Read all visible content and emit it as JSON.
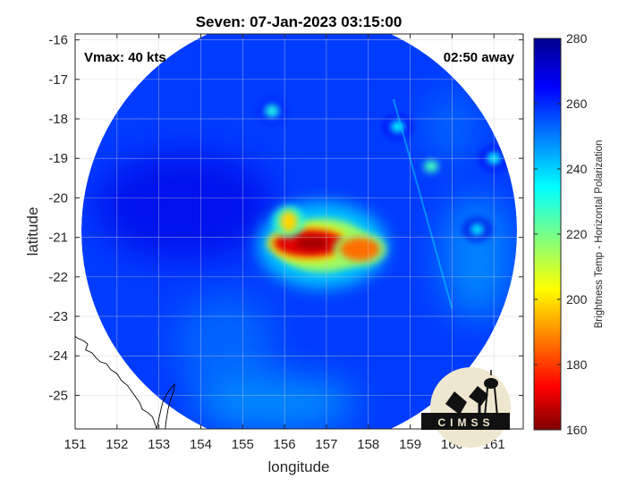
{
  "chart_data": {
    "type": "heatmap",
    "title": "Seven: 07-Jan-2023 03:15:00",
    "xlabel": "longitude",
    "ylabel": "latitude",
    "xlim": [
      151,
      161.7
    ],
    "ylim": [
      -25.85,
      -15.85
    ],
    "x_ticks": [
      151,
      152,
      153,
      154,
      155,
      156,
      157,
      158,
      159,
      160,
      161
    ],
    "y_ticks": [
      -16,
      -17,
      -18,
      -19,
      -20,
      -21,
      -22,
      -23,
      -24,
      -25
    ],
    "grid": true,
    "annotations": {
      "vmax": "Vmax: 40 kts",
      "time_away": "02:50 away"
    },
    "colorbar": {
      "label": "Brightness Temp - Horizontal Polarization",
      "range": [
        160,
        280
      ],
      "ticks": [
        160,
        180,
        200,
        220,
        240,
        260,
        280
      ],
      "colormap": "jet"
    },
    "swath": {
      "center": [
        156.35,
        -20.85
      ],
      "radius_deg": 5.2
    },
    "storm_center": [
      156.6,
      -21.15
    ],
    "background_bt": 258,
    "features": [
      {
        "name": "convective core",
        "lon": 156.6,
        "lat": -21.15,
        "bt": 172
      },
      {
        "name": "eastern rainband",
        "lon": 157.8,
        "lat": -21.3,
        "bt": 188
      },
      {
        "name": "northern bump",
        "lon": 156.1,
        "lat": -20.6,
        "bt": 200
      },
      {
        "name": "northeast cell",
        "lon": 159.5,
        "lat": -19.2,
        "bt": 228
      },
      {
        "name": "north cell",
        "lon": 155.7,
        "lat": -17.8,
        "bt": 232
      },
      {
        "name": "north-northeast cell",
        "lon": 158.7,
        "lat": -18.2,
        "bt": 236
      },
      {
        "name": "east cell",
        "lon": 160.6,
        "lat": -20.8,
        "bt": 238
      },
      {
        "name": "far east cell",
        "lon": 161.0,
        "lat": -19.0,
        "bt": 236
      }
    ],
    "coastline": "Australia (Queensland)",
    "logo": "CIMSS"
  }
}
